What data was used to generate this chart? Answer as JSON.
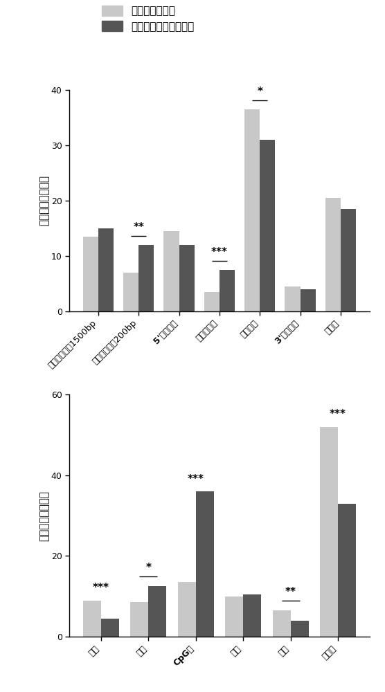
{
  "chart1": {
    "categories": [
      "起始位点上渂1500bp",
      "起始位点上渂200bp",
      "5'非编码区",
      "第一外显子",
      "基因本体",
      "3'非编码区",
      "基因间"
    ],
    "categories_bold": [
      false,
      false,
      true,
      false,
      false,
      true,
      false
    ],
    "light_values": [
      13.5,
      7.0,
      14.5,
      3.5,
      36.5,
      4.5,
      20.5
    ],
    "dark_values": [
      15.0,
      12.0,
      12.0,
      7.5,
      31.0,
      4.0,
      18.5
    ],
    "ylim": [
      0,
      40
    ],
    "yticks": [
      0,
      10,
      20,
      30,
      40
    ],
    "ylabel": "甲基化位点百分比",
    "significance": [
      {
        "type": "none",
        "x": 0
      },
      {
        "type": "**",
        "x": 1,
        "line": true
      },
      {
        "type": "none",
        "x": 2
      },
      {
        "type": "***",
        "x": 3,
        "line": true
      },
      {
        "type": "*",
        "x": 4,
        "line": true
      },
      {
        "type": "none",
        "x": 5
      },
      {
        "type": "none",
        "x": 6
      }
    ]
  },
  "chart2": {
    "categories": [
      "北架",
      "北岸",
      "CpG岛",
      "南岸",
      "南架",
      "开放区"
    ],
    "categories_bold": [
      false,
      false,
      true,
      false,
      false,
      false
    ],
    "light_values": [
      9.0,
      8.5,
      13.5,
      10.0,
      6.5,
      52.0
    ],
    "dark_values": [
      4.5,
      12.5,
      36.0,
      10.5,
      4.0,
      33.0
    ],
    "ylim": [
      0,
      60
    ],
    "yticks": [
      0,
      20,
      40,
      60
    ],
    "ylabel": "甲基化位点百分比",
    "significance": [
      {
        "type": "***",
        "x": 0,
        "line": false
      },
      {
        "type": "*",
        "x": 1,
        "line": true
      },
      {
        "type": "***",
        "x": 2,
        "line": false
      },
      {
        "type": "none",
        "x": 3
      },
      {
        "type": "**",
        "x": 4,
        "line": true
      },
      {
        "type": "***",
        "x": 5,
        "line": false
      }
    ]
  },
  "legend_labels": [
    "差异甲基化位点",
    "所有分析的甲基化位点"
  ],
  "light_color": "#c8c8c8",
  "dark_color": "#555555",
  "bar_width": 0.38,
  "background_color": "#ffffff",
  "sig_fontsize": 11,
  "ylabel_fontsize": 11,
  "tick_fontsize": 9,
  "legend_fontsize": 11
}
